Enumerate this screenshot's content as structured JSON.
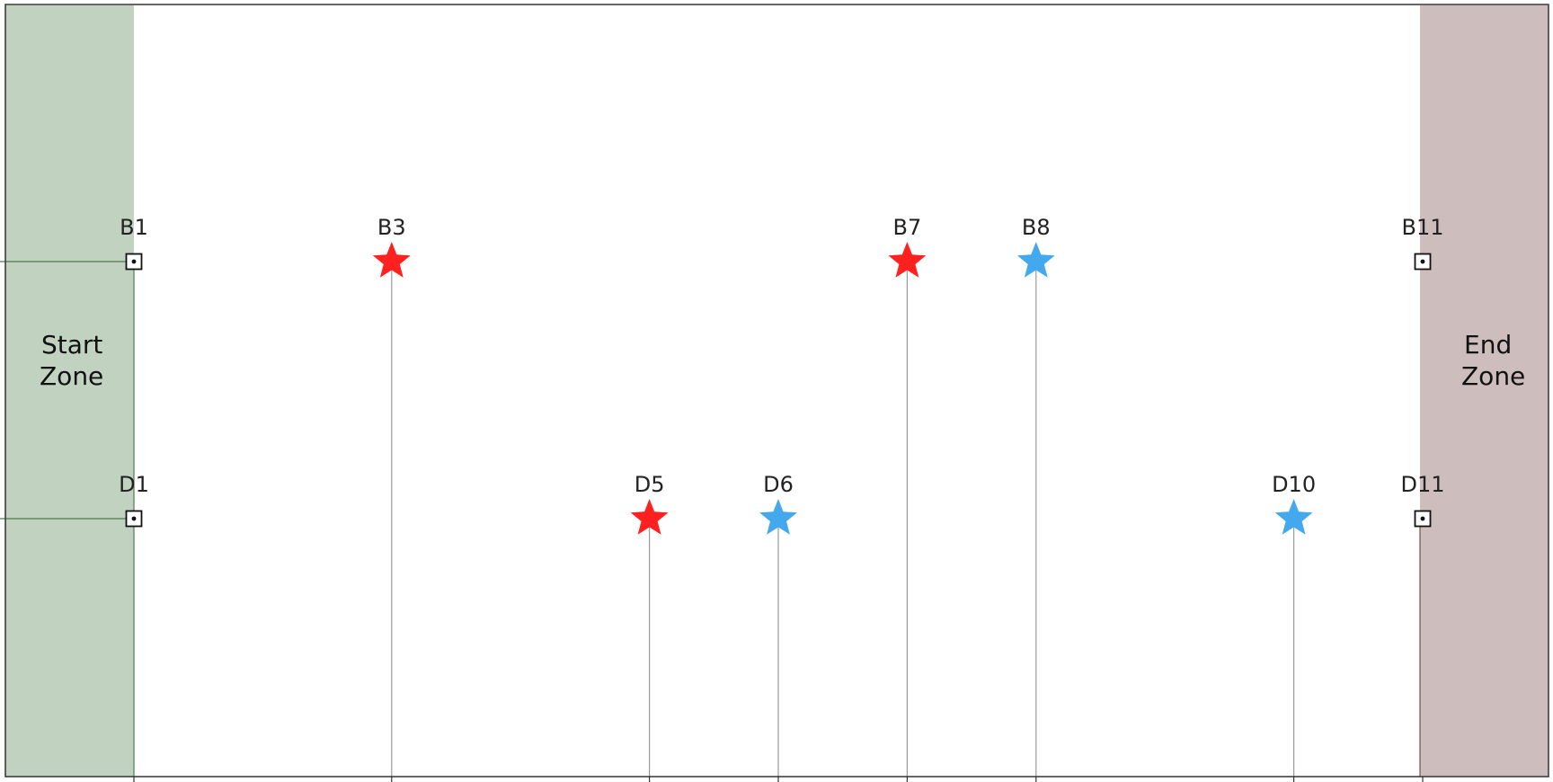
{
  "zones": {
    "start": {
      "line1": "Start",
      "line2": "Zone",
      "color": "#c1d2c1",
      "edge_color": "#4e7d4e"
    },
    "end": {
      "line1": "End",
      "line2": "Zone",
      "color": "#cdbdbd",
      "edge_color": "#7d4e4e"
    }
  },
  "rows": [
    {
      "id": "B",
      "nodes": [
        {
          "label": "B1",
          "col": 1,
          "kind": "box"
        },
        {
          "label": "B3",
          "col": 3,
          "kind": "star",
          "color": "#ff2020"
        },
        {
          "label": "B7",
          "col": 7,
          "kind": "star",
          "color": "#ff2020"
        },
        {
          "label": "B8",
          "col": 8,
          "kind": "star",
          "color": "#44a8ee"
        },
        {
          "label": "B11",
          "col": 11,
          "kind": "box"
        }
      ]
    },
    {
      "id": "D",
      "nodes": [
        {
          "label": "D1",
          "col": 1,
          "kind": "box"
        },
        {
          "label": "D5",
          "col": 5,
          "kind": "star",
          "color": "#ff2020"
        },
        {
          "label": "D6",
          "col": 6,
          "kind": "star",
          "color": "#44a8ee"
        },
        {
          "label": "D10",
          "col": 10,
          "kind": "star",
          "color": "#44a8ee"
        },
        {
          "label": "D11",
          "col": 11,
          "kind": "box"
        }
      ]
    }
  ],
  "ticks": [
    1,
    3,
    5,
    6,
    7,
    8,
    10,
    11
  ],
  "colors": {
    "frame": "#333333",
    "stem": "#9a9a9a",
    "text": "#222222"
  }
}
